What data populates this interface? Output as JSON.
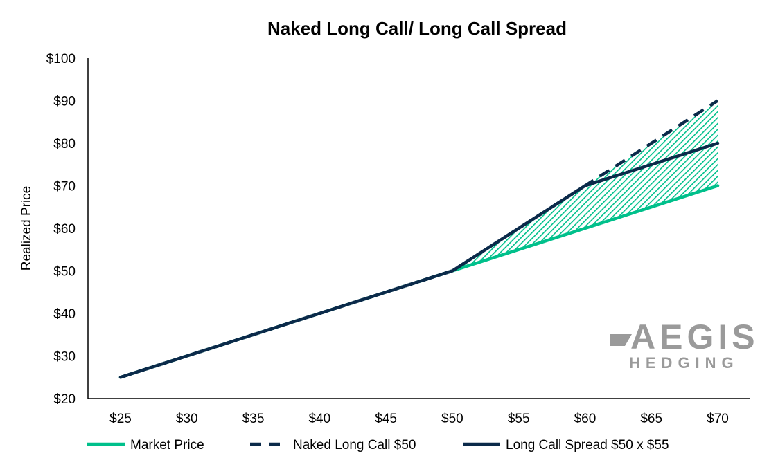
{
  "chart_data": {
    "type": "line",
    "title": "Naked Long Call/ Long Call Spread",
    "xlabel": "",
    "ylabel": "Realized Price",
    "x": [
      25,
      30,
      35,
      40,
      45,
      50,
      55,
      60,
      65,
      70
    ],
    "x_tick_labels": [
      "$25",
      "$30",
      "$35",
      "$40",
      "$45",
      "$50",
      "$55",
      "$60",
      "$65",
      "$70"
    ],
    "y_tick_values": [
      20,
      30,
      40,
      50,
      60,
      70,
      80,
      90,
      100
    ],
    "y_tick_labels": [
      "$20",
      "$30",
      "$40",
      "$50",
      "$60",
      "$70",
      "$80",
      "$90",
      "$100"
    ],
    "xlim": [
      25,
      70
    ],
    "ylim": [
      20,
      100
    ],
    "series": [
      {
        "name": "Market Price",
        "color": "#00c08b",
        "style": "solid",
        "values": [
          25,
          30,
          35,
          40,
          45,
          50,
          55,
          60,
          65,
          70
        ]
      },
      {
        "name": "Naked Long Call $50",
        "color": "#0b2a4a",
        "style": "dashed",
        "values": [
          25,
          30,
          35,
          40,
          45,
          50,
          60,
          70,
          80,
          90
        ]
      },
      {
        "name": "Long Call Spread $50 x $55",
        "color": "#0b2a4a",
        "style": "solid",
        "values": [
          25,
          30,
          35,
          40,
          45,
          50,
          60,
          70,
          75,
          80
        ]
      }
    ],
    "shaded_region": {
      "between": [
        "Market Price",
        "Naked Long Call $50"
      ],
      "from_x": 50,
      "pattern": "diagonal-hatch",
      "color": "#00c08b"
    },
    "grid": false,
    "legend_position": "bottom"
  },
  "logo": {
    "name": "AEGIS",
    "sub": "HEDGING"
  }
}
